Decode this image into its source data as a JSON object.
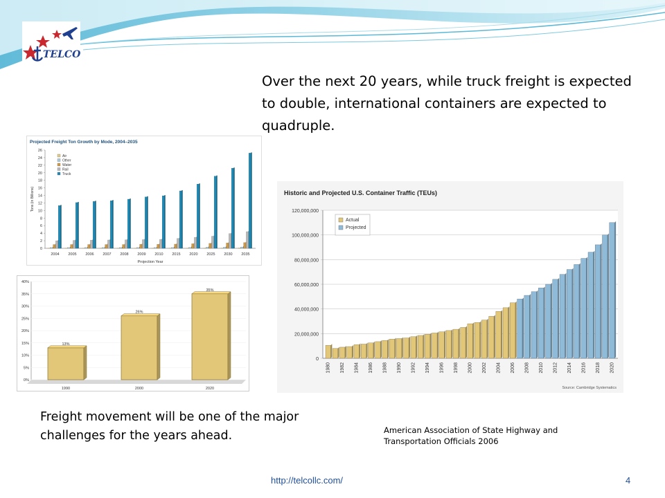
{
  "slide": {
    "headline": "Over the next 20 years, while truck freight is expected to double, international containers are expected to quadruple.",
    "bottom_text": "Freight movement will be one of the major challenges for the years ahead.",
    "source": "American Association of State Highway and Transportation Officials  2006",
    "footer_url": "http://telcollc.com/",
    "page_number": "4",
    "logo_text": "TELCO"
  },
  "colors": {
    "wave_blue": "#5bb8d6",
    "wave_light": "#bfe6f2",
    "truck": "#1d8bb8",
    "rail": "#b8b8b8",
    "water": "#cf9a43",
    "other": "#a9c9df",
    "air": "#e5cc82",
    "bar_gold": "#e2c778",
    "actual": "#e2c778",
    "projected": "#8fbbd9"
  },
  "chart_data": [
    {
      "type": "bar",
      "title": "Projected Freight Ton Growth by Mode, 2004–2035",
      "xlabel": "Projection Year",
      "ylabel": "Tons (in Billions)",
      "ylim": [
        0,
        26
      ],
      "yticks": [
        0,
        2,
        4,
        6,
        8,
        10,
        12,
        14,
        16,
        18,
        20,
        22,
        24,
        26
      ],
      "categories": [
        "2004",
        "2005",
        "2006",
        "2007",
        "2008",
        "2009",
        "2010",
        "2015",
        "2020",
        "2025",
        "2030",
        "2035"
      ],
      "legend_position": "top-left",
      "series": [
        {
          "name": "Air",
          "values": [
            0.05,
            0.05,
            0.05,
            0.05,
            0.05,
            0.05,
            0.05,
            0.05,
            0.06,
            0.07,
            0.08,
            0.1
          ]
        },
        {
          "name": "Other",
          "values": [
            0.2,
            0.2,
            0.2,
            0.2,
            0.2,
            0.2,
            0.2,
            0.2,
            0.25,
            0.3,
            0.3,
            0.35
          ]
        },
        {
          "name": "Water",
          "values": [
            1.0,
            1.0,
            1.0,
            1.0,
            1.0,
            1.05,
            1.05,
            1.1,
            1.2,
            1.3,
            1.4,
            1.5
          ]
        },
        {
          "name": "Rail",
          "values": [
            2.0,
            2.1,
            2.15,
            2.2,
            2.25,
            2.3,
            2.35,
            2.6,
            2.9,
            3.2,
            3.9,
            4.4
          ]
        },
        {
          "name": "Truck",
          "values": [
            11.3,
            12.1,
            12.4,
            12.6,
            13.0,
            13.6,
            13.9,
            15.2,
            17.0,
            19.1,
            21.2,
            25.2
          ]
        }
      ]
    },
    {
      "type": "bar",
      "title": "",
      "categories": [
        "1990",
        "2000",
        "2020"
      ],
      "values": [
        13,
        26,
        35
      ],
      "data_labels": [
        "13%",
        "26%",
        "35%"
      ],
      "ylim": [
        0,
        40
      ],
      "yticks": [
        "0%",
        "5%",
        "10%",
        "15%",
        "20%",
        "25%",
        "30%",
        "35%",
        "40%"
      ]
    },
    {
      "type": "bar",
      "title": "Historic and Projected U.S. Container Traffic (TEUs)",
      "ylim": [
        0,
        120000000
      ],
      "yticks": [
        "0",
        "20,000,000",
        "40,000,000",
        "60,000,000",
        "80,000,000",
        "100,000,000",
        "120,000,000"
      ],
      "x_tick_labels": [
        "1980",
        "1982",
        "1984",
        "1986",
        "1988",
        "1990",
        "1992",
        "1994",
        "1996",
        "1998",
        "2000",
        "2002",
        "2004",
        "2006",
        "2008",
        "2010",
        "2012",
        "2014",
        "2016",
        "2018",
        "2020"
      ],
      "legend_position": "top-left",
      "source_note": "Source: Cambridge Systematics",
      "series": [
        {
          "name": "Actual",
          "x": [
            1980,
            1981,
            1982,
            1983,
            1984,
            1985,
            1986,
            1987,
            1988,
            1989,
            1990,
            1991,
            1992,
            1993,
            1994,
            1995,
            1996,
            1997,
            1998,
            1999,
            2000,
            2001,
            2002,
            2003,
            2004,
            2005,
            2006
          ],
          "values": [
            10500000,
            8000000,
            9000000,
            9500000,
            11000000,
            11500000,
            12500000,
            13500000,
            14500000,
            15500000,
            16000000,
            16500000,
            17500000,
            18500000,
            19500000,
            20500000,
            21500000,
            22500000,
            23500000,
            25000000,
            28000000,
            29000000,
            31000000,
            34000000,
            38000000,
            41000000,
            45000000
          ]
        },
        {
          "name": "Projected",
          "x": [
            2007,
            2008,
            2009,
            2010,
            2011,
            2012,
            2013,
            2014,
            2015,
            2016,
            2017,
            2018,
            2019,
            2020
          ],
          "values": [
            48000000,
            51000000,
            54000000,
            57000000,
            60000000,
            64000000,
            68000000,
            72000000,
            76000000,
            81000000,
            86000000,
            92000000,
            100000000,
            110000000
          ]
        }
      ]
    }
  ]
}
